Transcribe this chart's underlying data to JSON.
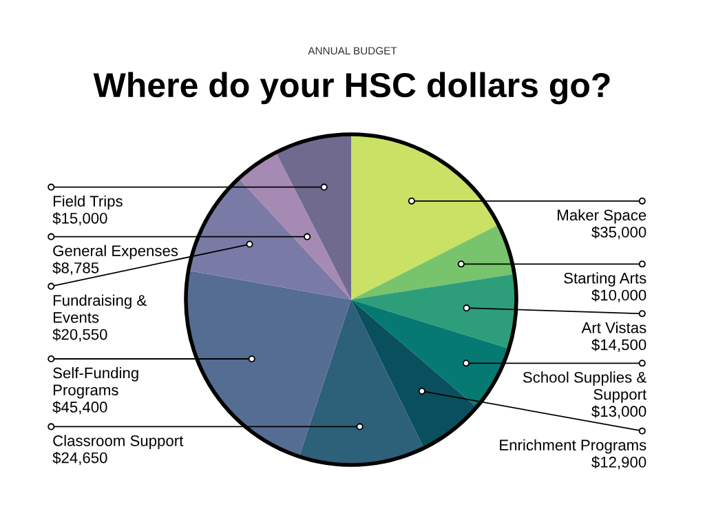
{
  "chart_data": {
    "type": "pie",
    "subtitle": "ANNUAL BUDGET",
    "title": "Where do your HSC dollars go?",
    "categories": [
      "Maker Space",
      "Starting Arts",
      "Art Vistas",
      "School Supplies &\nSupport",
      "Enrichment Programs",
      "Classroom Support",
      "Self-Funding\nPrograms",
      "Fundraising &\nEvents",
      "General Expenses",
      "Field Trips"
    ],
    "values": [
      35000,
      10000,
      14500,
      13000,
      12900,
      24650,
      45400,
      20550,
      8785,
      15000
    ],
    "value_labels": [
      "$35,000",
      "$10,000",
      "$14,500",
      "$13,000",
      "$12,900",
      "$24,650",
      "$45,400",
      "$20,550",
      "$8,785",
      "$15,000"
    ],
    "colors": [
      "#c9e265",
      "#78c46c",
      "#2e9e7a",
      "#067a72",
      "#0a4f5e",
      "#2d6079",
      "#556d93",
      "#7a7aa7",
      "#a58ab3",
      "#6f6a8e"
    ]
  }
}
